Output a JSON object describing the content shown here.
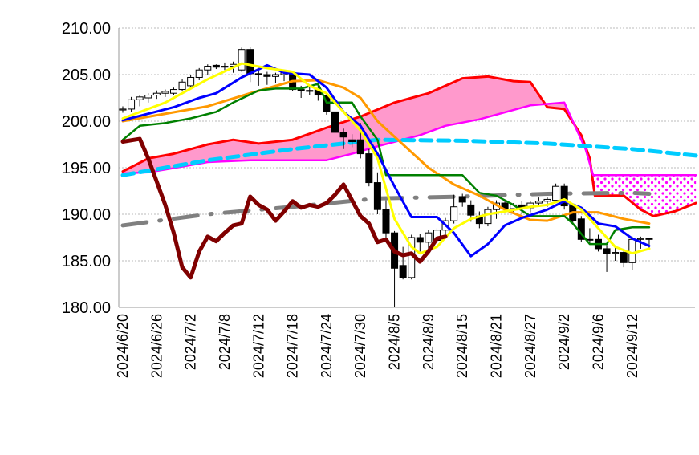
{
  "chart_data": {
    "type": "candlestick-ichimoku",
    "title": "",
    "xlabel": "",
    "ylabel": "",
    "ylim": [
      180,
      210
    ],
    "x_slots": 68,
    "grid": "horizontal dotted",
    "y_ticks": [
      "210.00",
      "205.00",
      "200.00",
      "195.00",
      "190.00",
      "185.00",
      "180.00"
    ],
    "y_tick_values": [
      210,
      205,
      200,
      195,
      190,
      185,
      180
    ],
    "x_ticks": [
      {
        "index": 0,
        "label": "2024/6/20"
      },
      {
        "index": 4,
        "label": "2024/6/26"
      },
      {
        "index": 8,
        "label": "2024/7/2"
      },
      {
        "index": 12,
        "label": "2024/7/8"
      },
      {
        "index": 16,
        "label": "2024/7/12"
      },
      {
        "index": 20,
        "label": "2024/7/18"
      },
      {
        "index": 24,
        "label": "2024/7/24"
      },
      {
        "index": 28,
        "label": "2024/7/30"
      },
      {
        "index": 32,
        "label": "2024/8/5"
      },
      {
        "index": 36,
        "label": "2024/8/9"
      },
      {
        "index": 40,
        "label": "2024/8/15"
      },
      {
        "index": 44,
        "label": "2024/8/21"
      },
      {
        "index": 48,
        "label": "2024/8/27"
      },
      {
        "index": 52,
        "label": "2024/9/2"
      },
      {
        "index": 56,
        "label": "2024/9/6"
      },
      {
        "index": 60,
        "label": "2024/9/12"
      }
    ],
    "candles_ohlc": [
      [
        201.2,
        201.6,
        200.9,
        201.3
      ],
      [
        201.3,
        202.6,
        201.0,
        202.3
      ],
      [
        202.3,
        202.8,
        201.6,
        202.6
      ],
      [
        202.5,
        203.0,
        202.0,
        202.8
      ],
      [
        202.8,
        203.3,
        202.4,
        203.0
      ],
      [
        203.0,
        203.4,
        202.6,
        203.2
      ],
      [
        203.0,
        203.6,
        202.8,
        203.4
      ],
      [
        203.4,
        204.5,
        203.2,
        204.2
      ],
      [
        203.8,
        205.0,
        203.5,
        204.7
      ],
      [
        204.7,
        205.7,
        204.4,
        205.5
      ],
      [
        205.5,
        206.1,
        205.0,
        205.9
      ],
      [
        206.0,
        206.1,
        205.6,
        205.8
      ],
      [
        205.8,
        206.3,
        205.5,
        205.9
      ],
      [
        205.9,
        206.4,
        205.2,
        206.1
      ],
      [
        205.5,
        207.9,
        205.3,
        207.7
      ],
      [
        207.7,
        208.0,
        204.2,
        205.1
      ],
      [
        205.1,
        205.4,
        203.8,
        205.0
      ],
      [
        205.0,
        205.3,
        203.9,
        204.8
      ],
      [
        204.8,
        205.2,
        204.1,
        205.0
      ],
      [
        205.0,
        205.3,
        204.3,
        205.2
      ],
      [
        205.2,
        205.4,
        203.2,
        203.4
      ],
      [
        203.4,
        203.8,
        202.5,
        203.3
      ],
      [
        203.3,
        203.7,
        202.8,
        203.2
      ],
      [
        203.4,
        203.9,
        202.2,
        202.8
      ],
      [
        202.8,
        203.0,
        200.7,
        201.0
      ],
      [
        201.0,
        201.2,
        198.5,
        198.8
      ],
      [
        198.8,
        199.2,
        197.0,
        198.3
      ],
      [
        198.0,
        198.6,
        197.2,
        197.8
      ],
      [
        198.0,
        199.8,
        196.0,
        196.5
      ],
      [
        196.5,
        197.0,
        193.0,
        193.4
      ],
      [
        193.4,
        194.5,
        190.0,
        190.5
      ],
      [
        190.5,
        191.5,
        187.5,
        188.0
      ],
      [
        188.0,
        188.2,
        180.0,
        184.2
      ],
      [
        184.5,
        186.5,
        183.0,
        183.2
      ],
      [
        183.2,
        187.8,
        183.0,
        187.5
      ],
      [
        187.5,
        187.9,
        186.0,
        187.0
      ],
      [
        187.0,
        188.3,
        186.3,
        188.0
      ],
      [
        187.2,
        188.5,
        186.8,
        188.3
      ],
      [
        188.3,
        189.6,
        187.8,
        189.3
      ],
      [
        189.3,
        192.1,
        189.0,
        190.8
      ],
      [
        191.9,
        192.2,
        190.8,
        191.3
      ],
      [
        191.0,
        191.5,
        189.2,
        189.9
      ],
      [
        189.8,
        190.3,
        188.5,
        189.0
      ],
      [
        189.0,
        190.8,
        188.7,
        190.5
      ],
      [
        190.5,
        191.5,
        189.5,
        191.2
      ],
      [
        191.2,
        191.5,
        190.2,
        190.6
      ],
      [
        190.6,
        191.2,
        190.0,
        191.0
      ],
      [
        191.0,
        191.4,
        190.0,
        190.7
      ],
      [
        190.7,
        191.4,
        190.2,
        191.2
      ],
      [
        191.2,
        191.8,
        190.8,
        191.4
      ],
      [
        191.4,
        191.8,
        190.8,
        191.6
      ],
      [
        191.5,
        193.3,
        191.2,
        193.0
      ],
      [
        193.0,
        193.3,
        190.5,
        190.9
      ],
      [
        190.9,
        191.0,
        189.0,
        189.3
      ],
      [
        189.5,
        189.8,
        187.0,
        187.3
      ],
      [
        187.3,
        188.5,
        186.8,
        187.3
      ],
      [
        187.3,
        187.8,
        186.0,
        186.3
      ],
      [
        186.3,
        186.7,
        183.8,
        185.8
      ],
      [
        185.8,
        186.4,
        185.0,
        185.9
      ],
      [
        185.9,
        186.3,
        184.3,
        184.8
      ],
      [
        184.8,
        187.6,
        184.0,
        187.3
      ],
      [
        187.3,
        187.6,
        186.3,
        187.4
      ],
      [
        187.4,
        187.5,
        186.4,
        187.3
      ]
    ],
    "cloud": {
      "upper_color": "#ff0000",
      "lower_color": "#ff00ff",
      "fill_color": "#ff99cc",
      "pattern_color": "#ff00ff",
      "solid_until_index": 55.3
    },
    "series": [
      {
        "id": "span-a",
        "color": "#ff0000",
        "width": 3,
        "points": [
          [
            0,
            194.6
          ],
          [
            3,
            196.0
          ],
          [
            6,
            196.5
          ],
          [
            10,
            197.5
          ],
          [
            13,
            198.0
          ],
          [
            16,
            197.6
          ],
          [
            20,
            198.0
          ],
          [
            24,
            199.3
          ],
          [
            28,
            200.5
          ],
          [
            32,
            202.0
          ],
          [
            36,
            203.0
          ],
          [
            40,
            204.6
          ],
          [
            43,
            204.8
          ],
          [
            46,
            204.3
          ],
          [
            48,
            204.2
          ],
          [
            50,
            201.5
          ],
          [
            52,
            201.3
          ],
          [
            54,
            198.5
          ],
          [
            55,
            196.0
          ],
          [
            55.6,
            192.0
          ],
          [
            59,
            192.0
          ],
          [
            61,
            190.5
          ],
          [
            62.5,
            189.8
          ],
          [
            65,
            190.3
          ],
          [
            67.5,
            191.2
          ]
        ]
      },
      {
        "id": "span-b",
        "color": "#ff00ff",
        "width": 2.5,
        "points": [
          [
            0,
            194.4
          ],
          [
            3,
            194.5
          ],
          [
            5,
            194.8
          ],
          [
            10,
            195.6
          ],
          [
            15,
            195.8
          ],
          [
            20,
            195.8
          ],
          [
            24,
            195.8
          ],
          [
            27,
            196.5
          ],
          [
            30,
            197.3
          ],
          [
            35,
            198.5
          ],
          [
            38,
            199.5
          ],
          [
            42,
            200.2
          ],
          [
            46,
            201.2
          ],
          [
            48,
            201.7
          ],
          [
            52,
            202.0
          ],
          [
            53,
            200.0
          ],
          [
            54.5,
            197.0
          ],
          [
            55.4,
            194.2
          ],
          [
            67.5,
            194.2
          ]
        ]
      },
      {
        "id": "long-ma",
        "color": "#00ccff",
        "width": 5,
        "dash": "14,8",
        "points": [
          [
            0,
            194.2
          ],
          [
            10,
            195.8
          ],
          [
            20,
            197.0
          ],
          [
            30,
            198.0
          ],
          [
            40,
            197.9
          ],
          [
            50,
            197.6
          ],
          [
            60,
            197.0
          ],
          [
            67.5,
            196.3
          ]
        ]
      },
      {
        "id": "mid-ma",
        "color": "#808080",
        "width": 5,
        "dash": "30,16,2,16",
        "points": [
          [
            0,
            188.8
          ],
          [
            10,
            190.0
          ],
          [
            20,
            190.8
          ],
          [
            30,
            191.7
          ],
          [
            40,
            191.9
          ],
          [
            50,
            192.2
          ],
          [
            60,
            192.3
          ],
          [
            62,
            192.2
          ]
        ]
      },
      {
        "id": "senkou-base",
        "color": "#ff9900",
        "width": 3,
        "points": [
          [
            0,
            200.0
          ],
          [
            5,
            200.8
          ],
          [
            10,
            201.6
          ],
          [
            15,
            203.0
          ],
          [
            20,
            204.3
          ],
          [
            23,
            204.4
          ],
          [
            26,
            203.6
          ],
          [
            28,
            202.5
          ],
          [
            30,
            200.0
          ],
          [
            33,
            197.5
          ],
          [
            36,
            195.0
          ],
          [
            39,
            193.2
          ],
          [
            42,
            192.0
          ],
          [
            45,
            190.5
          ],
          [
            48,
            189.4
          ],
          [
            50,
            189.3
          ],
          [
            53,
            190.2
          ],
          [
            56,
            190.2
          ],
          [
            59,
            189.5
          ],
          [
            62,
            189.0
          ]
        ]
      },
      {
        "id": "kijun",
        "color": "#008000",
        "width": 2.5,
        "points": [
          [
            0,
            198.0
          ],
          [
            2,
            199.5
          ],
          [
            5,
            199.8
          ],
          [
            8,
            200.3
          ],
          [
            11,
            201.0
          ],
          [
            13,
            202.0
          ],
          [
            16,
            203.3
          ],
          [
            18,
            203.5
          ],
          [
            21,
            203.5
          ],
          [
            23,
            204.0
          ],
          [
            24,
            202.0
          ],
          [
            27,
            202.0
          ],
          [
            28,
            200.5
          ],
          [
            30,
            198.0
          ],
          [
            31,
            194.2
          ],
          [
            40,
            194.2
          ],
          [
            42,
            192.3
          ],
          [
            44,
            192.0
          ],
          [
            46,
            191.0
          ],
          [
            48,
            189.8
          ],
          [
            52,
            189.8
          ],
          [
            53,
            189.0
          ],
          [
            55,
            186.8
          ],
          [
            57,
            186.8
          ],
          [
            58,
            188.3
          ],
          [
            60,
            188.6
          ],
          [
            62,
            188.6
          ]
        ]
      },
      {
        "id": "blue-line",
        "color": "#0000ff",
        "width": 3,
        "points": [
          [
            0,
            200.1
          ],
          [
            3,
            200.8
          ],
          [
            6,
            201.5
          ],
          [
            9,
            202.5
          ],
          [
            11,
            203.0
          ],
          [
            14,
            204.7
          ],
          [
            17,
            206.0
          ],
          [
            19,
            205.2
          ],
          [
            22,
            205.0
          ],
          [
            24,
            203.6
          ],
          [
            26,
            201.0
          ],
          [
            28,
            199.5
          ],
          [
            30,
            196.5
          ],
          [
            32,
            193.0
          ],
          [
            34,
            189.7
          ],
          [
            37,
            189.7
          ],
          [
            39,
            188.0
          ],
          [
            41,
            185.5
          ],
          [
            43,
            186.8
          ],
          [
            45,
            188.8
          ],
          [
            47,
            189.6
          ],
          [
            50,
            190.5
          ],
          [
            52,
            191.4
          ],
          [
            54,
            190.7
          ],
          [
            56,
            189.0
          ],
          [
            58,
            188.7
          ],
          [
            60,
            187.4
          ],
          [
            62,
            186.6
          ]
        ]
      },
      {
        "id": "tenkan",
        "color": "#ffff00",
        "width": 3,
        "points": [
          [
            0,
            200.3
          ],
          [
            5,
            202.0
          ],
          [
            10,
            204.5
          ],
          [
            14,
            206.2
          ],
          [
            17,
            205.7
          ],
          [
            20,
            205.3
          ],
          [
            22,
            203.8
          ],
          [
            24,
            203.0
          ],
          [
            26,
            201.0
          ],
          [
            28,
            199.0
          ],
          [
            30,
            196.0
          ],
          [
            32,
            189.5
          ],
          [
            34,
            186.5
          ],
          [
            35,
            185.8
          ],
          [
            37,
            186.5
          ],
          [
            39,
            188.5
          ],
          [
            41,
            189.5
          ],
          [
            43,
            190.0
          ],
          [
            45,
            190.3
          ],
          [
            48,
            190.8
          ],
          [
            50,
            191.0
          ],
          [
            52,
            191.6
          ],
          [
            54,
            190.5
          ],
          [
            56,
            188.5
          ],
          [
            58,
            186.5
          ],
          [
            60,
            185.8
          ],
          [
            62,
            186.3
          ]
        ]
      },
      {
        "id": "chikou",
        "color": "#800000",
        "width": 5,
        "points": [
          [
            0,
            197.8
          ],
          [
            2,
            198.1
          ],
          [
            3,
            196.0
          ],
          [
            5,
            191.0
          ],
          [
            6,
            188.0
          ],
          [
            7,
            184.3
          ],
          [
            8,
            183.2
          ],
          [
            9,
            186.0
          ],
          [
            10,
            187.6
          ],
          [
            11,
            187.1
          ],
          [
            12,
            188.0
          ],
          [
            13,
            188.8
          ],
          [
            14,
            189.0
          ],
          [
            15,
            191.9
          ],
          [
            16,
            191.0
          ],
          [
            17,
            190.5
          ],
          [
            18,
            189.3
          ],
          [
            19,
            190.3
          ],
          [
            20,
            191.4
          ],
          [
            21,
            190.7
          ],
          [
            22,
            191.0
          ],
          [
            23,
            190.8
          ],
          [
            24,
            191.2
          ],
          [
            25,
            192.1
          ],
          [
            26,
            193.2
          ],
          [
            27,
            191.5
          ],
          [
            28,
            189.8
          ],
          [
            29,
            189.0
          ],
          [
            30,
            187.0
          ],
          [
            31,
            187.3
          ],
          [
            32,
            186.0
          ],
          [
            33,
            185.6
          ],
          [
            34,
            185.8
          ],
          [
            35,
            184.9
          ],
          [
            36,
            186.0
          ],
          [
            37,
            187.4
          ],
          [
            38,
            187.6
          ]
        ]
      }
    ]
  }
}
